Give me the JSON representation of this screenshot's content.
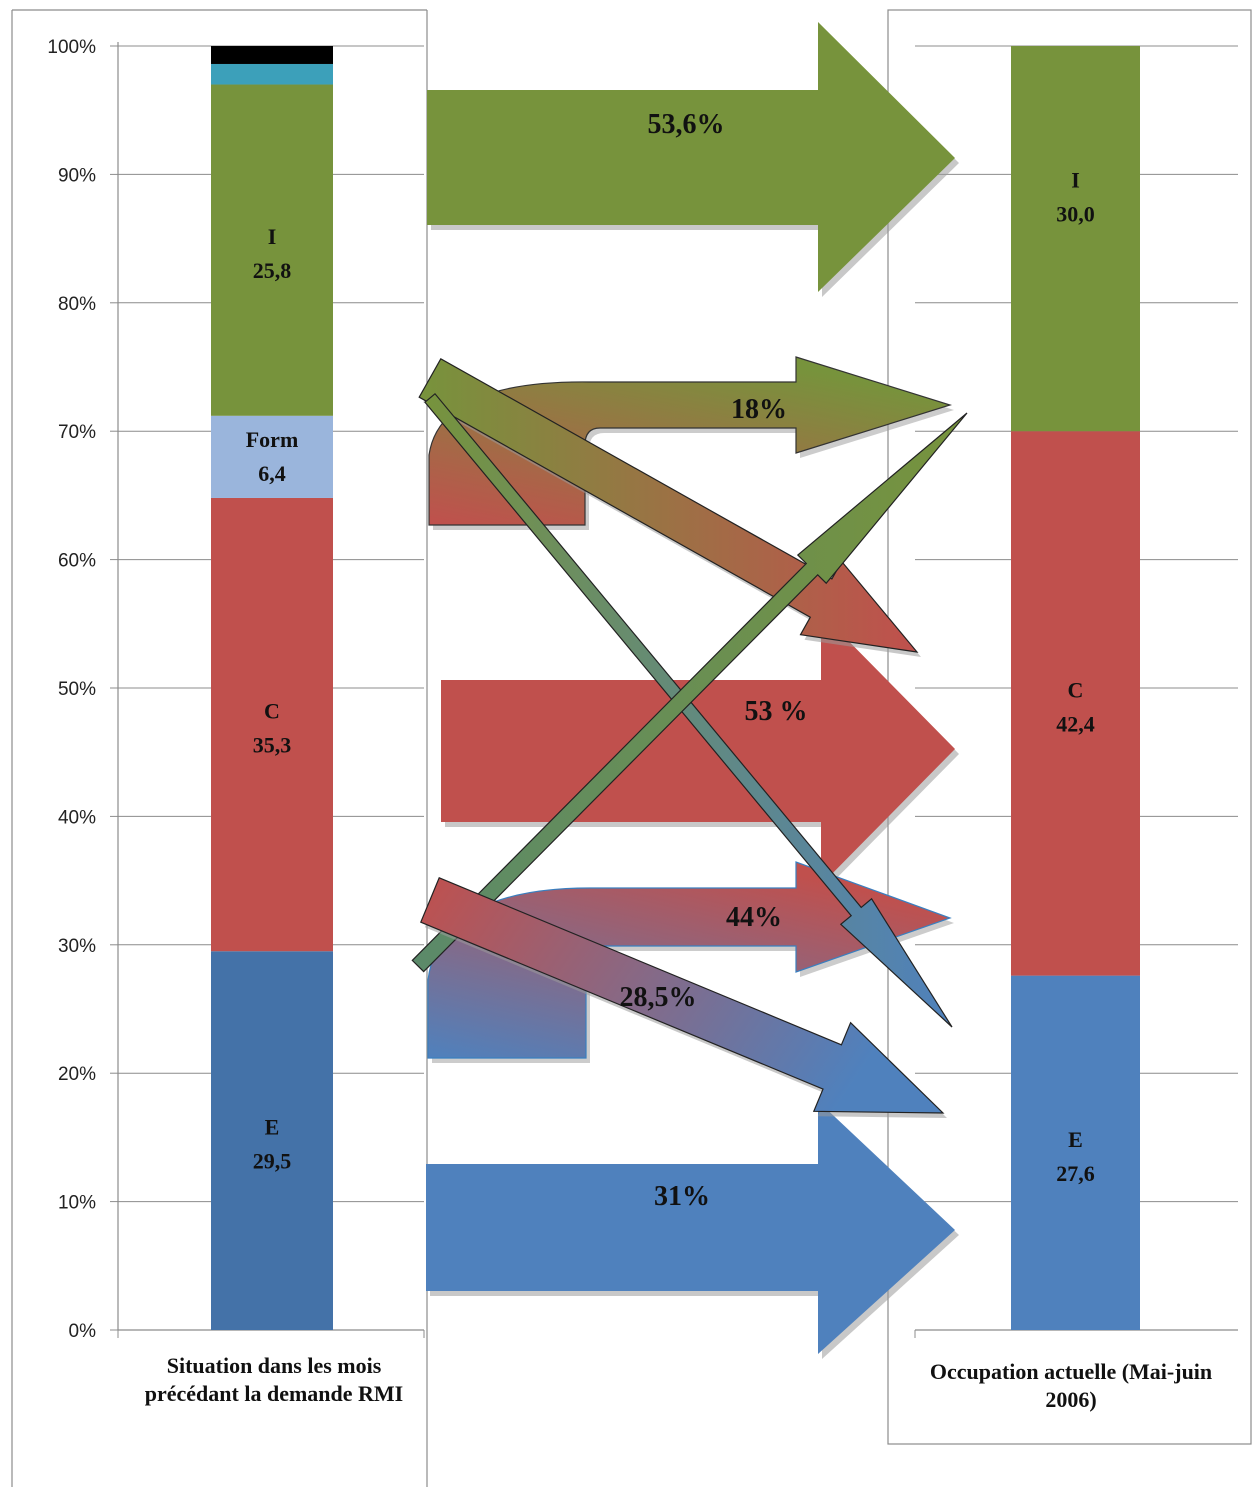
{
  "chart_data": {
    "type": "bar",
    "stacked": true,
    "y_axis": {
      "min": 0,
      "max": 100,
      "unit": "%",
      "ticks": [
        "0%",
        "10%",
        "20%",
        "30%",
        "40%",
        "50%",
        "60%",
        "70%",
        "80%",
        "90%",
        "100%"
      ]
    },
    "grid": true,
    "left_bar": {
      "category": "Situation dans les mois précédant la demande RMI",
      "segments": [
        {
          "code": "E",
          "value": 29.5,
          "label": "E",
          "value_text": "29,5",
          "color": "#4472a8"
        },
        {
          "code": "C",
          "value": 35.3,
          "label": "C",
          "value_text": "35,3",
          "color": "#c0504d"
        },
        {
          "code": "Form",
          "value": 6.4,
          "label": "Form",
          "value_text": "6,4",
          "color": "#9ab5dc"
        },
        {
          "code": "I",
          "value": 25.8,
          "label": "I",
          "value_text": "25,8",
          "color": "#77933c"
        },
        {
          "code": "other1",
          "value": 1.6,
          "color": "#3ca0ba"
        },
        {
          "code": "other2",
          "value": 1.4,
          "color": "#000000"
        }
      ]
    },
    "right_bar": {
      "category": "Occupation actuelle (Mai-juin 2006)",
      "segments": [
        {
          "code": "E",
          "value": 27.6,
          "label": "E",
          "value_text": "27,6",
          "color": "#4f81bd"
        },
        {
          "code": "C",
          "value": 42.4,
          "label": "C",
          "value_text": "42,4",
          "color": "#c0504d"
        },
        {
          "code": "I",
          "value": 30.0,
          "label": "I",
          "value_text": "30,0",
          "color": "#77933c"
        }
      ]
    },
    "flows": [
      {
        "from": "I",
        "to": "I",
        "label": "53,6%"
      },
      {
        "from": "C",
        "to": "I",
        "label": "18%"
      },
      {
        "from": "I",
        "to": "C",
        "label": ""
      },
      {
        "from": "I",
        "to": "E",
        "label": ""
      },
      {
        "from": "E",
        "to": "I",
        "label": ""
      },
      {
        "from": "C",
        "to": "C",
        "label": "53 %"
      },
      {
        "from": "E",
        "to": "C",
        "label": "44%"
      },
      {
        "from": "C",
        "to": "E",
        "label": "28,5%"
      },
      {
        "from": "E",
        "to": "E",
        "label": "31%"
      }
    ]
  }
}
